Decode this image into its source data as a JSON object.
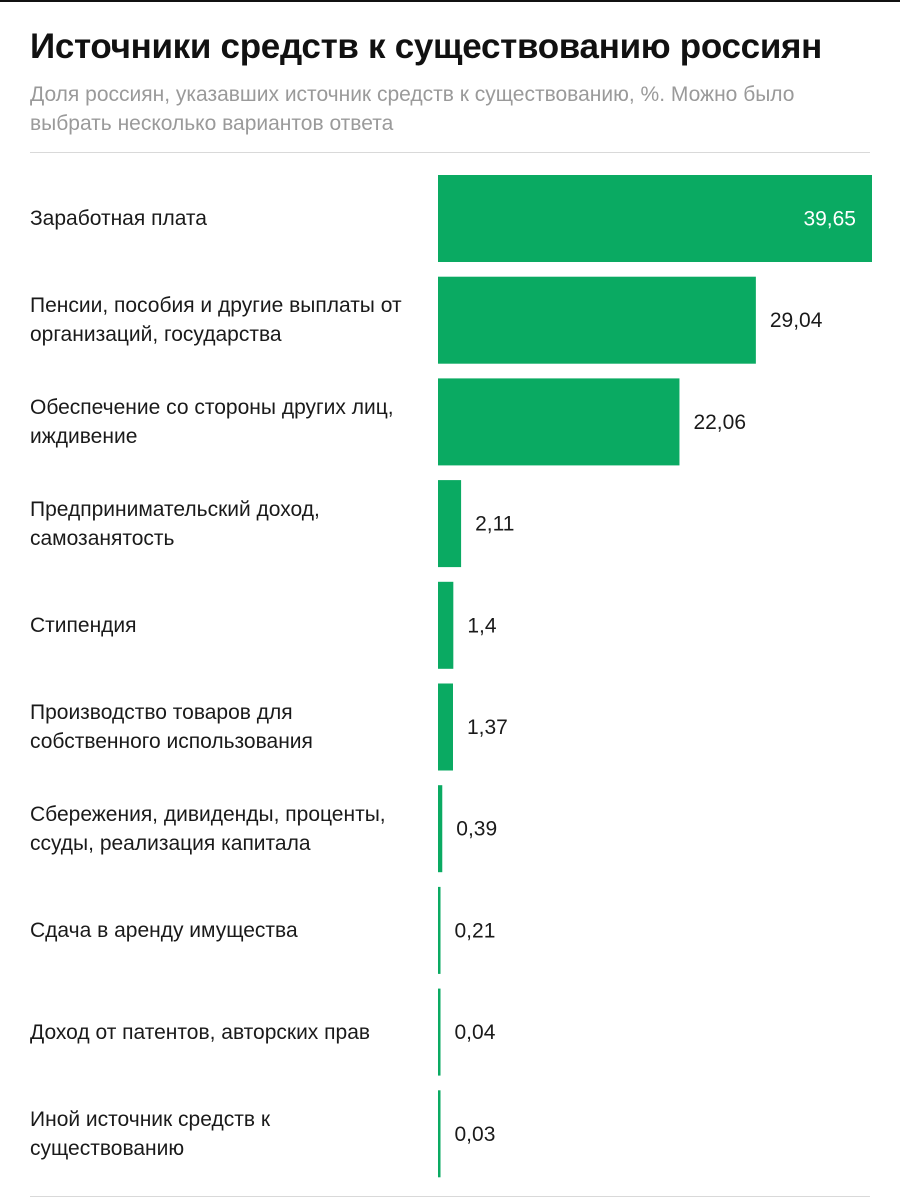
{
  "title": "Источники средств к существованию россиян",
  "subtitle": "Доля россиян, указавших источник средств к существованию, %. Можно было выбрать несколько вариантов ответа",
  "colors": {
    "bar": "#0aaa62",
    "value_inside": "#ffffff",
    "value_outside": "#1a1a1a"
  },
  "chart_data": {
    "type": "bar",
    "orientation": "horizontal",
    "categories": [
      "Заработная плата",
      "Пенсии, пособия и другие выплаты от организаций, государства",
      "Обеспечение со стороны других лиц, иждивение",
      "Предпринимательский доход, самозанятость",
      "Стипендия",
      "Производство товаров для собственного использования",
      "Сбережения, дивиденды, проценты, ссуды, реализация капитала",
      "Сдача в аренду имущества",
      "Доход от патентов, авторских прав",
      "Иной источник средств к существованию"
    ],
    "values": [
      39.65,
      29.04,
      22.06,
      2.11,
      1.4,
      1.37,
      0.39,
      0.21,
      0.04,
      0.03
    ],
    "value_labels": [
      "39,65",
      "29,04",
      "22,06",
      "2,11",
      "1,4",
      "1,37",
      "0,39",
      "0,21",
      "0,04",
      "0,03"
    ],
    "xlim": [
      0,
      39.65
    ],
    "grid": false,
    "legend": "none"
  }
}
